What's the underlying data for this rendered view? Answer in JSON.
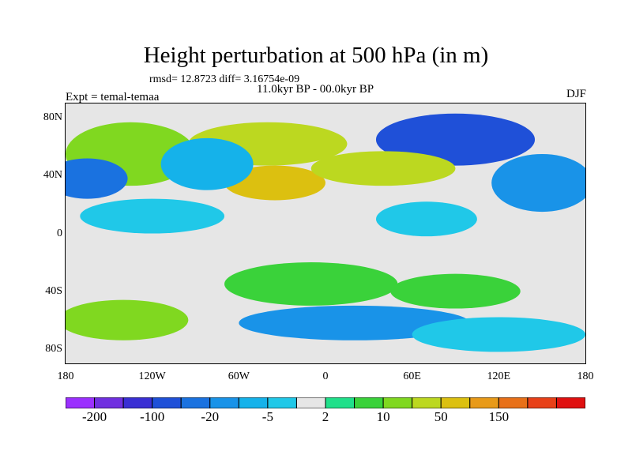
{
  "title": "Height perturbation at 500 hPa (in m)",
  "stats": "rmsd= 12.8723 diff= 3.16754e-09",
  "period": "11.0kyr BP - 00.0kyr BP",
  "expt": "Expt = temal-temaa",
  "season": "DJF",
  "lat_labels": [
    "80N",
    "40N",
    "0",
    "40S",
    "80S"
  ],
  "lat_values": [
    80,
    40,
    0,
    -40,
    -80
  ],
  "lon_labels": [
    "180",
    "120W",
    "60W",
    "0",
    "60E",
    "120E",
    "180"
  ],
  "lon_values": [
    -180,
    -120,
    -60,
    0,
    60,
    120,
    180
  ],
  "colorbar": {
    "colors": [
      "#9b30ff",
      "#7030e0",
      "#3a2fd4",
      "#1f50d8",
      "#1a72e0",
      "#1993e8",
      "#15b2ea",
      "#20c8e8",
      "#e6e6e6",
      "#20e08a",
      "#3ad23a",
      "#80d820",
      "#bcd820",
      "#dcc010",
      "#e89a18",
      "#e87018",
      "#e84018",
      "#e01010"
    ],
    "labels": [
      "-200",
      "-100",
      "-20",
      "-5",
      "2",
      "10",
      "50",
      "150"
    ]
  },
  "field": {
    "background_color": "#e6e6e6",
    "regions": [
      {
        "name": "arctic-atlantic-positive",
        "color": "#bcd820",
        "lon": -40,
        "lat": 62,
        "rx": 55,
        "ry": 15
      },
      {
        "name": "alaska-pacific-positive",
        "color": "#80d820",
        "lon": -135,
        "lat": 55,
        "rx": 45,
        "ry": 22
      },
      {
        "name": "north-atlantic-positive",
        "color": "#dcc010",
        "lon": -35,
        "lat": 35,
        "rx": 35,
        "ry": 12
      },
      {
        "name": "canada-negative",
        "color": "#1f50d8",
        "lon": -78,
        "lat": 50,
        "rx": 22,
        "ry": 14
      },
      {
        "name": "canada-negative-core",
        "color": "#15b2ea",
        "lon": -82,
        "lat": 48,
        "rx": 32,
        "ry": 18
      },
      {
        "name": "north-pacific-negative",
        "color": "#1a72e0",
        "lon": -165,
        "lat": 38,
        "rx": 28,
        "ry": 14
      },
      {
        "name": "siberia-negative",
        "color": "#1f50d8",
        "lon": 90,
        "lat": 65,
        "rx": 55,
        "ry": 18
      },
      {
        "name": "eurasia-positive",
        "color": "#bcd820",
        "lon": 40,
        "lat": 45,
        "rx": 50,
        "ry": 12
      },
      {
        "name": "asia-pacific-negative",
        "color": "#1993e8",
        "lon": 150,
        "lat": 35,
        "rx": 35,
        "ry": 20
      },
      {
        "name": "tropical-pacific-negative",
        "color": "#20c8e8",
        "lon": -120,
        "lat": 12,
        "rx": 50,
        "ry": 12
      },
      {
        "name": "indian-ocean-negative",
        "color": "#20c8e8",
        "lon": 70,
        "lat": 10,
        "rx": 35,
        "ry": 12
      },
      {
        "name": "south-atlantic-positive",
        "color": "#3ad23a",
        "lon": -10,
        "lat": -35,
        "rx": 60,
        "ry": 15
      },
      {
        "name": "south-indian-positive",
        "color": "#3ad23a",
        "lon": 90,
        "lat": -40,
        "rx": 45,
        "ry": 12
      },
      {
        "name": "south-pacific-positive",
        "color": "#80d820",
        "lon": -140,
        "lat": -60,
        "rx": 45,
        "ry": 14
      },
      {
        "name": "southern-ocean-negative",
        "color": "#1993e8",
        "lon": 20,
        "lat": -62,
        "rx": 80,
        "ry": 12
      },
      {
        "name": "antarctic-negative",
        "color": "#20c8e8",
        "lon": 120,
        "lat": -70,
        "rx": 60,
        "ry": 12
      }
    ]
  }
}
